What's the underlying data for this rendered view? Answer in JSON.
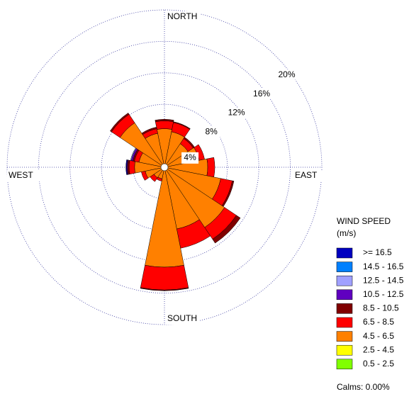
{
  "chart_data": {
    "type": "windrose",
    "categories": [
      "NORTH",
      null,
      null,
      null,
      "EAST",
      null,
      null,
      null,
      "SOUTH",
      null,
      null,
      null,
      "WEST",
      null,
      null,
      null
    ],
    "rlim": [
      0,
      20
    ],
    "rticks": [
      {
        "value": 4,
        "label": "4%"
      },
      {
        "value": 8,
        "label": "8%"
      },
      {
        "value": 12,
        "label": "12%"
      },
      {
        "value": 16,
        "label": "16%"
      },
      {
        "value": 20,
        "label": "20%"
      }
    ],
    "legend_title": "WIND SPEED",
    "legend_unit": "(m/s)",
    "calms_label": "Calms: 0.00%",
    "series": [
      {
        "name": "0.5 -  2.5",
        "color": "#80ff00",
        "values": [
          0,
          0,
          0,
          0,
          0,
          0,
          0,
          0,
          0,
          0,
          0,
          0,
          0,
          0,
          0,
          0
        ]
      },
      {
        "name": "2.5 -  4.5",
        "color": "#ffff00",
        "values": [
          0,
          0,
          0,
          0,
          0,
          0,
          0,
          0,
          0,
          0,
          0,
          0,
          0,
          0,
          0,
          0
        ]
      },
      {
        "name": "4.5 -  6.5",
        "color": "#ff8000",
        "values": [
          4.9,
          4.6,
          3.6,
          4.5,
          5.5,
          7.3,
          9.2,
          8.0,
          12.7,
          1.5,
          1.6,
          2.5,
          3.8,
          3.3,
          6.8,
          4.4
        ]
      },
      {
        "name": "6.5 -  8.5",
        "color": "#ff0000",
        "values": [
          1.0,
          1.2,
          0.8,
          0.7,
          0.9,
          1.5,
          1.8,
          2.5,
          2.9,
          0.3,
          0.6,
          0.5,
          0.7,
          0.6,
          1.3,
          0.6
        ]
      },
      {
        "name": "8.5 - 10.5",
        "color": "#800000",
        "values": [
          0.2,
          0.1,
          0.2,
          0,
          0,
          0.2,
          0.6,
          0,
          0.1,
          0,
          0,
          0,
          0.2,
          0.2,
          0.2,
          0.2
        ]
      },
      {
        "name": "10.5 - 12.5",
        "color": "#6000c0",
        "values": [
          0,
          0,
          0,
          0,
          0,
          0,
          0,
          0,
          0,
          0,
          0,
          0,
          0.1,
          0.2,
          0,
          0
        ]
      },
      {
        "name": "12.5 - 14.5",
        "color": "#a0a0ff",
        "values": [
          0,
          0,
          0,
          0,
          0,
          0,
          0,
          0,
          0,
          0,
          0,
          0,
          0,
          0.1,
          0,
          0
        ]
      },
      {
        "name": "14.5 - 16.5",
        "color": "#0080ff",
        "values": [
          0,
          0,
          0,
          0,
          0,
          0,
          0,
          0,
          0,
          0,
          0,
          0,
          0,
          0,
          0,
          0
        ]
      },
      {
        "name": ">= 16.5",
        "color": "#0000c0",
        "values": [
          0,
          0,
          0,
          0,
          0,
          0,
          0,
          0,
          0,
          0,
          0,
          0,
          0.1,
          0,
          0,
          0
        ]
      }
    ]
  }
}
